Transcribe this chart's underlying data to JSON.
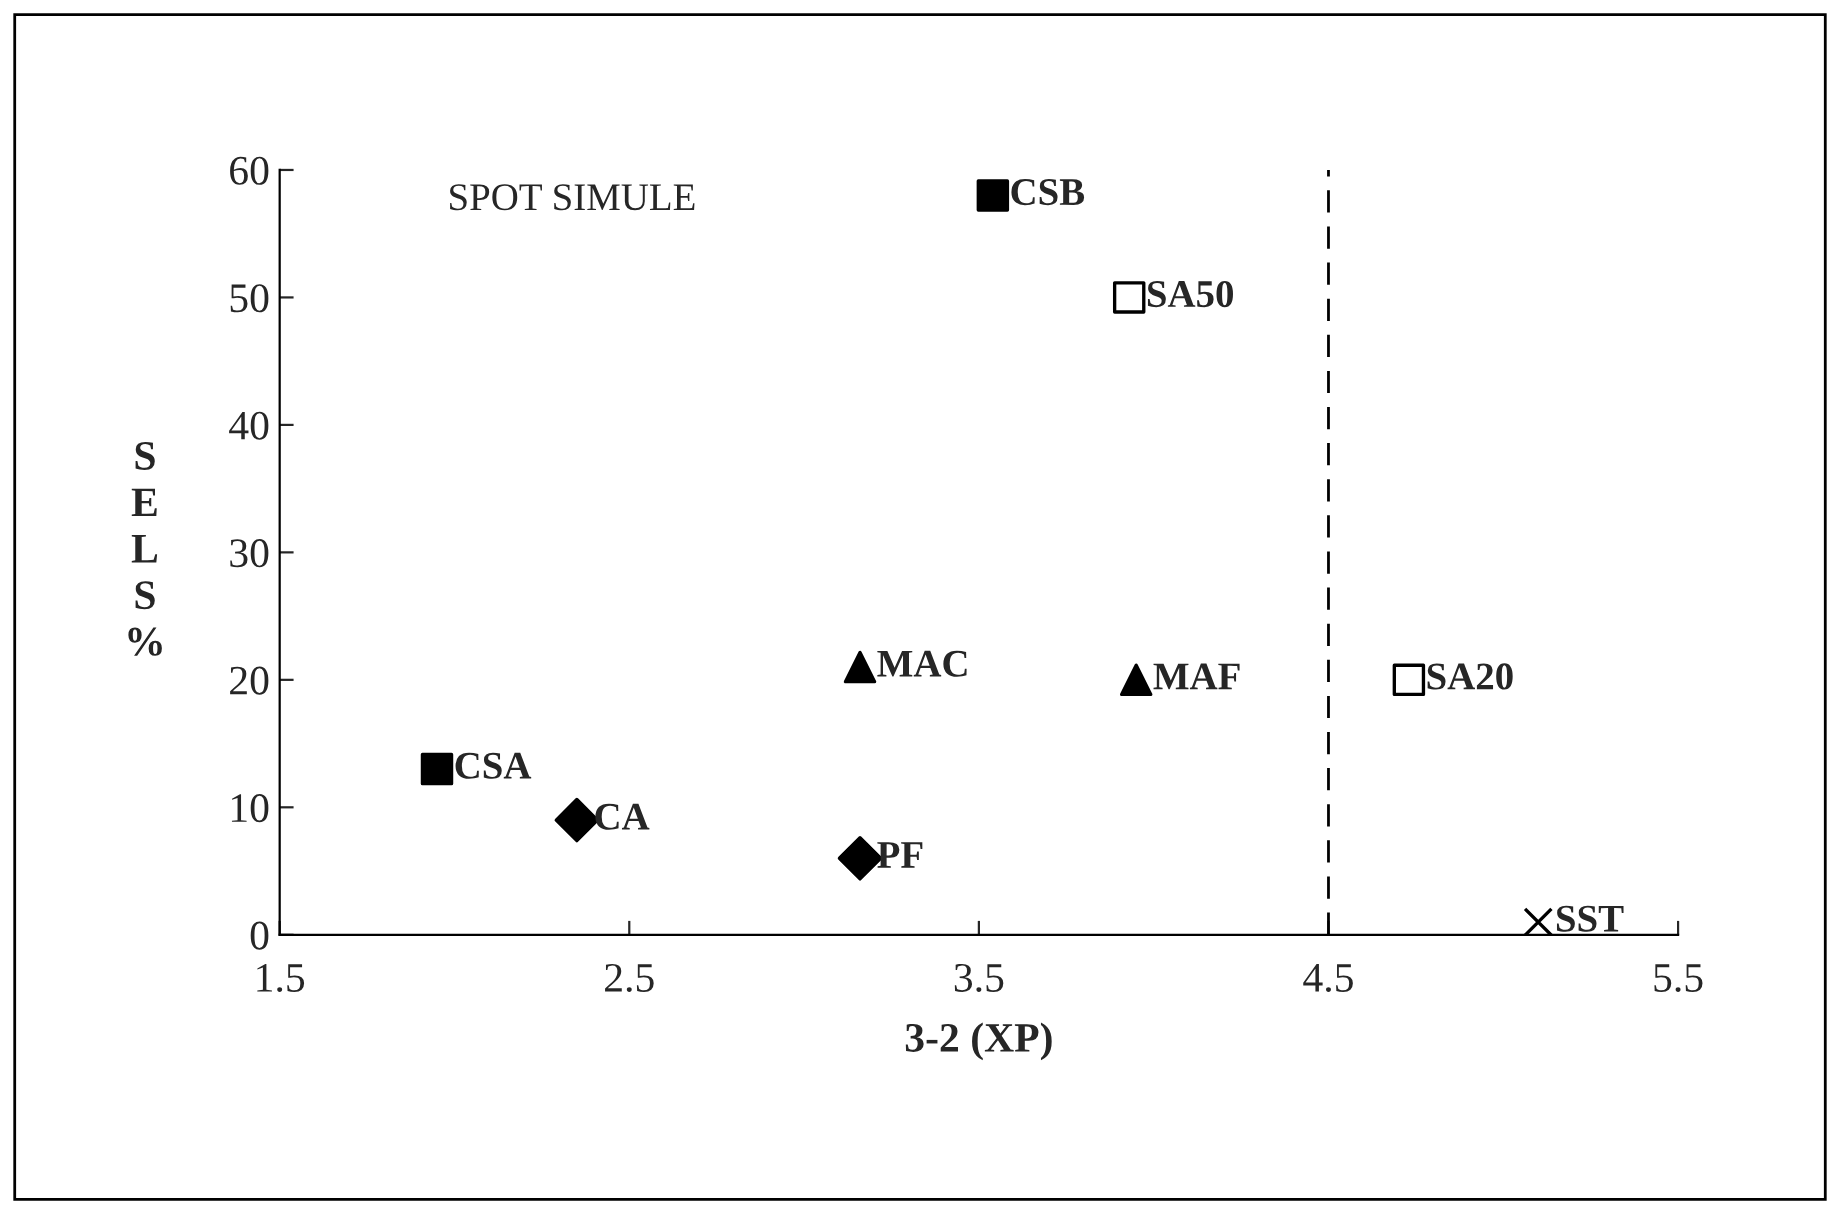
{
  "chart_data": {
    "type": "scatter",
    "xlabel": "3-2 (XP)",
    "ylabel": "SELS%",
    "xlim": [
      1.5,
      5.5
    ],
    "xticks": [
      1.5,
      2.5,
      3.5,
      4.5,
      5.5
    ],
    "ylim": [
      0,
      60
    ],
    "yticks": [
      0,
      10,
      20,
      30,
      40,
      50,
      60
    ],
    "grid": false,
    "legend": false,
    "annotations": [
      "SPOT SIMULE"
    ],
    "ref_lines": [
      {
        "axis": "x",
        "value": 4.5,
        "label": null,
        "color": "#000000",
        "line_style": "dashed"
      }
    ],
    "series": [
      {
        "name": "CSB",
        "color": "#000000",
        "marker": "square",
        "x": [
          3.54
        ],
        "values": [
          58
        ]
      },
      {
        "name": "SA50",
        "color": "#ffffff",
        "marker": "square",
        "x": [
          3.93
        ],
        "values": [
          50
        ]
      },
      {
        "name": "MAC",
        "color": "#000000",
        "marker": "triangle",
        "x": [
          3.16
        ],
        "values": [
          21
        ]
      },
      {
        "name": "MAF",
        "color": "#000000",
        "marker": "triangle",
        "x": [
          3.95
        ],
        "values": [
          20
        ]
      },
      {
        "name": "SA20",
        "color": "#ffffff",
        "marker": "square",
        "x": [
          4.73
        ],
        "values": [
          20
        ]
      },
      {
        "name": "CSA",
        "color": "#000000",
        "marker": "square",
        "x": [
          1.95
        ],
        "values": [
          13
        ]
      },
      {
        "name": "CA",
        "color": "#000000",
        "marker": "diamond",
        "x": [
          2.35
        ],
        "values": [
          9
        ]
      },
      {
        "name": "PF",
        "color": "#000000",
        "marker": "diamond",
        "x": [
          3.16
        ],
        "values": [
          6
        ]
      },
      {
        "name": "SST",
        "color": "#000000",
        "marker": "cross",
        "x": [
          5.1
        ],
        "values": [
          1
        ]
      }
    ]
  }
}
